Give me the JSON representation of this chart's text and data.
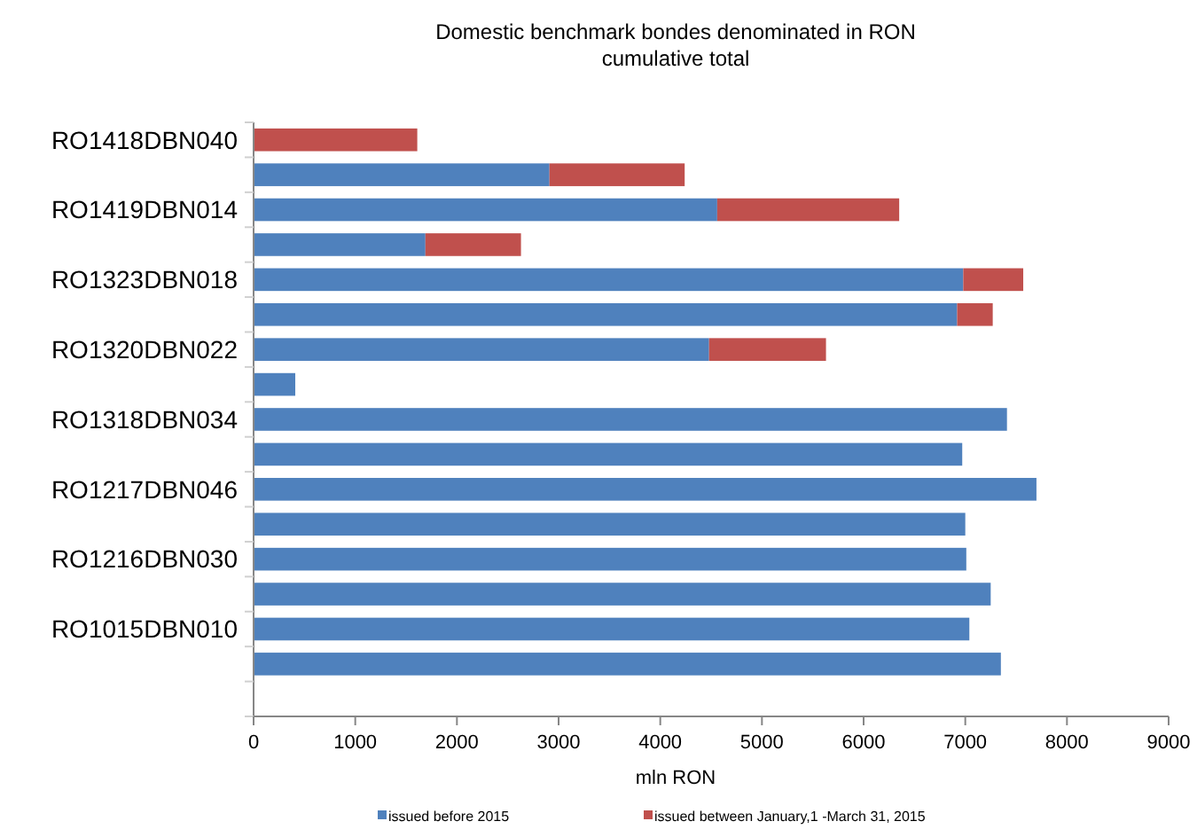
{
  "chart_data": {
    "type": "bar",
    "orientation": "horizontal",
    "stacked": true,
    "title": "Domestic benchmark bondes denominated in RON\ncumulative total",
    "xlabel": "mln RON",
    "categories": [
      "RO1418DBN040",
      null,
      "RO1419DBN014",
      null,
      "RO1323DBN018",
      null,
      "RO1320DBN022",
      null,
      "RO1318DBN034",
      null,
      "RO1217DBN046",
      null,
      "RO1216DBN030",
      null,
      "RO1015DBN010",
      null,
      null
    ],
    "series": [
      {
        "name": "issued before 2015",
        "color": "#4f81bd",
        "values": [
          null,
          2910,
          4560,
          1690,
          6980,
          6920,
          4480,
          410,
          7410,
          6970,
          7700,
          7000,
          7010,
          7250,
          7040,
          7350,
          null
        ]
      },
      {
        "name": "issued between January,1 -March 31, 2015",
        "color": "#c0504d",
        "values": [
          1610,
          1330,
          1790,
          940,
          590,
          350,
          1150,
          null,
          null,
          null,
          null,
          null,
          null,
          null,
          null,
          null,
          null
        ]
      }
    ],
    "xlim": [
      0,
      9000
    ],
    "xticks": [
      0,
      1000,
      2000,
      3000,
      4000,
      5000,
      6000,
      7000,
      8000,
      9000
    ],
    "grid": false,
    "legend": "bottom"
  }
}
